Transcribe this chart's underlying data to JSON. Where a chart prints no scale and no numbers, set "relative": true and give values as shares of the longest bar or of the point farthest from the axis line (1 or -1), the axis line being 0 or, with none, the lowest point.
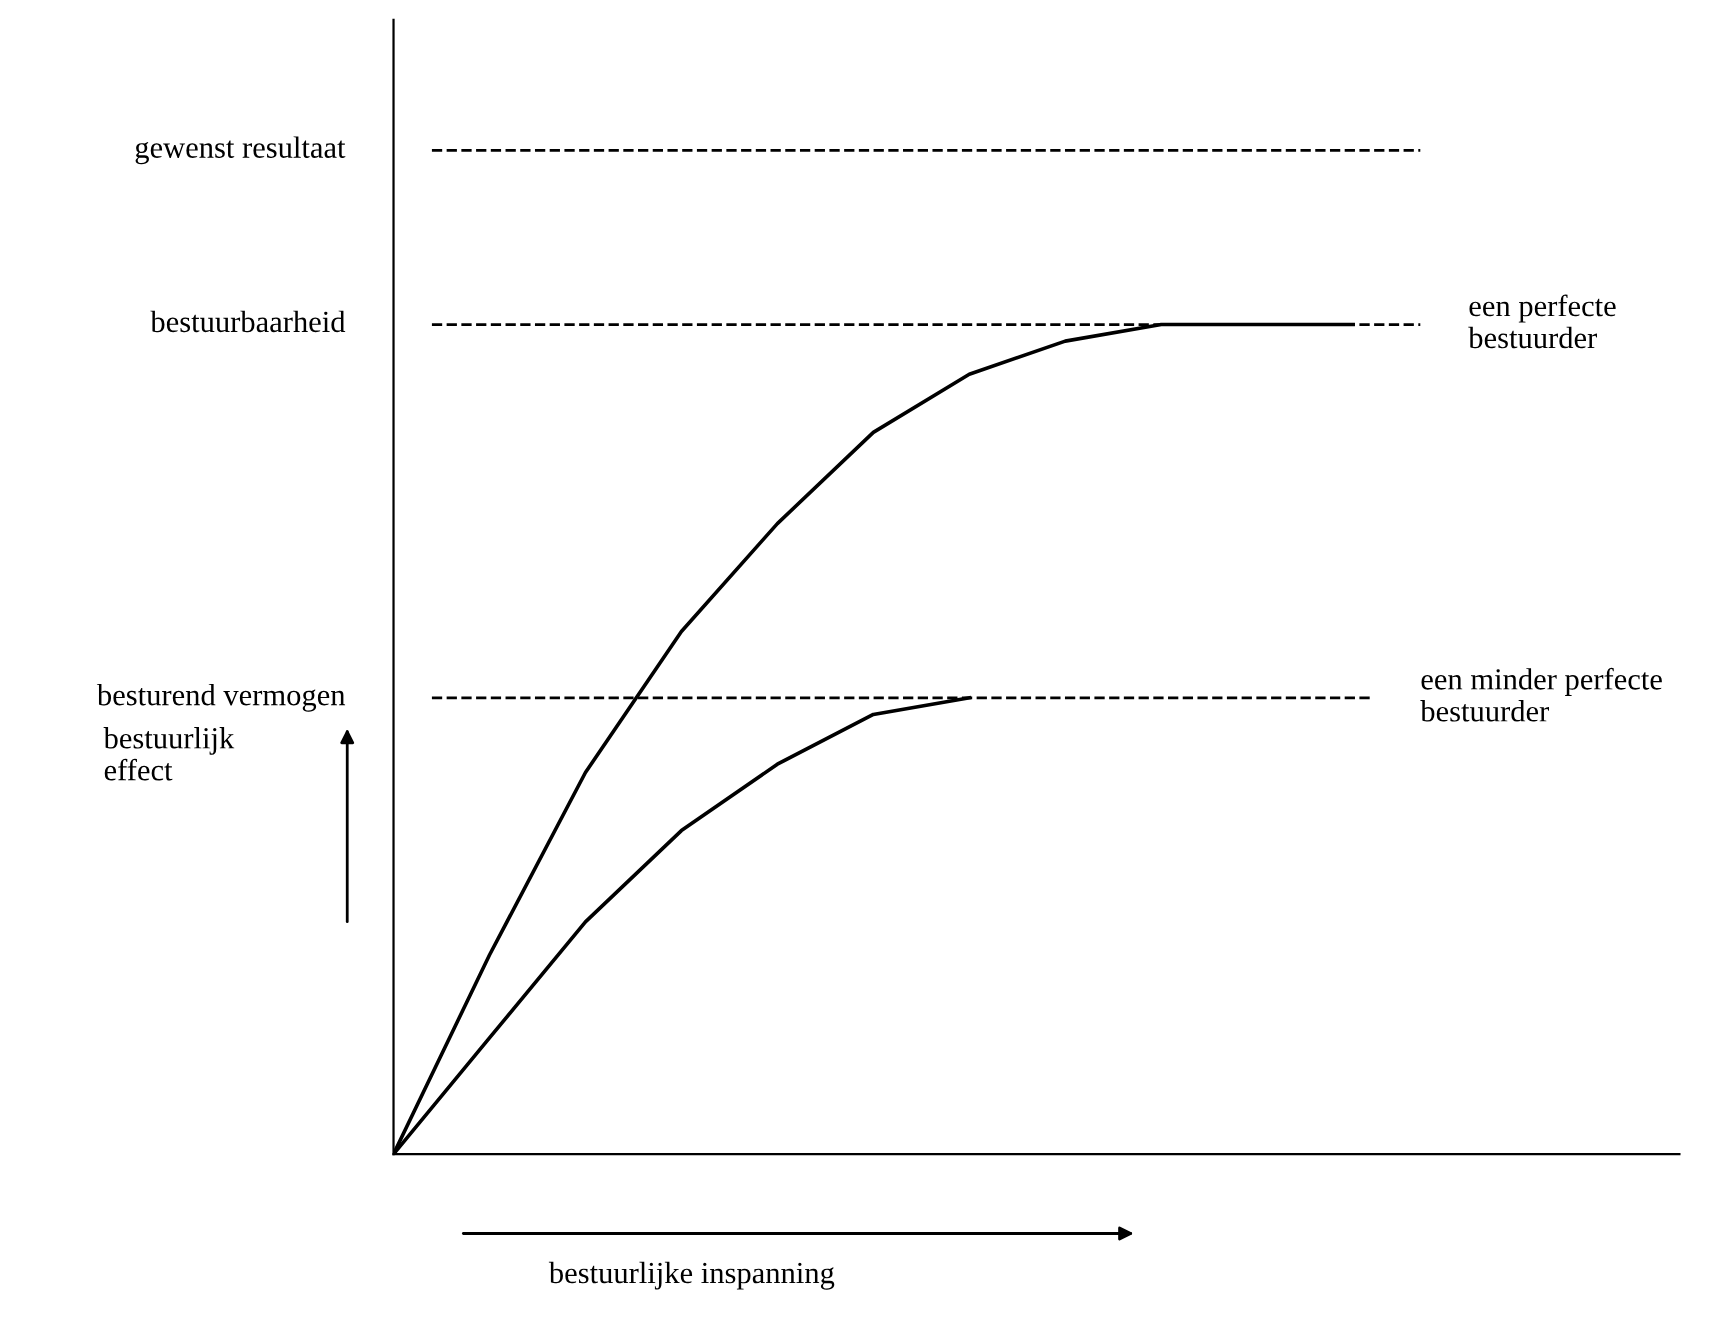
{
  "chart_data": {
    "type": "line",
    "relative": true,
    "xlabel": "bestuurlijke inspanning",
    "annotations": [
      "bestuurlijk\neffect"
    ],
    "categories": [
      null,
      null,
      null,
      null,
      null,
      null,
      null,
      null,
      null,
      null,
      null
    ],
    "series": [
      {
        "name": "een perfecte\nbestuurder",
        "color": "#000000",
        "values": [
          0,
          0.24,
          0.46,
          0.63,
          0.76,
          0.87,
          0.94,
          0.98,
          1,
          1,
          1
        ]
      },
      {
        "name": "een minder perfecte\nbestuurder",
        "color": "#000000",
        "values": [
          0,
          0.14,
          0.28,
          0.39,
          0.47,
          0.53,
          0.55,
          null,
          null,
          null,
          null
        ]
      }
    ],
    "ref_lines": [
      {
        "axis": "y",
        "value": 1.21,
        "label": "gewenst resultaat",
        "color": "#000000",
        "line_style": "dashed"
      },
      {
        "axis": "y",
        "value": 1.0,
        "label": "bestuurbaarheid",
        "color": "#000000",
        "line_style": "dashed"
      },
      {
        "axis": "y",
        "value": 0.55,
        "label": "besturend vermogen",
        "color": "#000000",
        "line_style": "dashed"
      }
    ],
    "legend": false,
    "marker": "none",
    "line_style": "solid"
  }
}
